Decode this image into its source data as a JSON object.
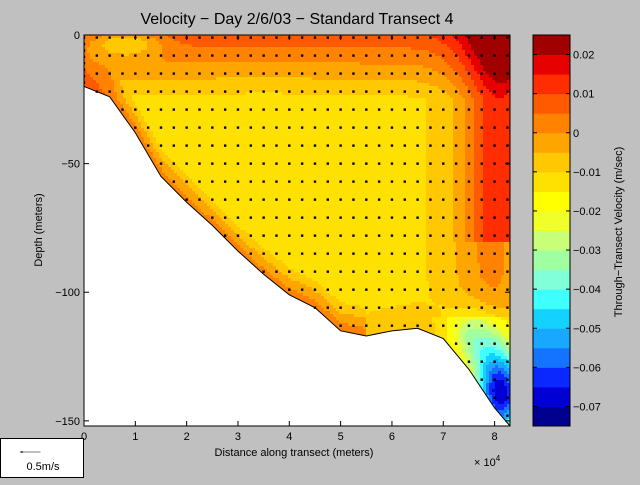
{
  "chart_data": {
    "type": "contour",
    "title": "Velocity − Day 2/6/03 − Standard Transect 4",
    "xlabel": "Distance along transect (meters)",
    "ylabel": "Depth (meters)",
    "x_exponent_label": "× 10",
    "x_exponent": "4",
    "xlim": [
      0,
      83000
    ],
    "ylim": [
      -152,
      0
    ],
    "x_ticks": [
      0,
      10000,
      20000,
      30000,
      40000,
      50000,
      60000,
      70000,
      80000
    ],
    "x_tick_labels": [
      "0",
      "1",
      "2",
      "3",
      "4",
      "5",
      "6",
      "7",
      "8"
    ],
    "y_ticks": [
      0,
      -50,
      -100,
      -150
    ],
    "y_tick_labels": [
      "0",
      "−50",
      "−100",
      "−150"
    ],
    "bottom_profile": {
      "x": [
        0,
        5000,
        10000,
        15000,
        20000,
        25000,
        30000,
        35000,
        40000,
        45000,
        50000,
        55000,
        60000,
        65000,
        70000,
        75000,
        80000,
        83000
      ],
      "depth": [
        -20,
        -24,
        -38,
        -55,
        -65,
        -74,
        -84,
        -93,
        -101,
        -106,
        -115,
        -117,
        -115,
        -114,
        -118,
        -130,
        -145,
        -152
      ]
    },
    "colorbar": {
      "label": "Through−Transect Velocity (m/sec)",
      "range": [
        -0.075,
        0.025
      ],
      "levels": 20,
      "ticks": [
        0.02,
        0.01,
        0,
        -0.01,
        -0.02,
        -0.03,
        -0.04,
        -0.05,
        -0.06,
        -0.07
      ],
      "tick_labels": [
        "0.02",
        "0.01",
        "0",
        "−0.01",
        "−0.02",
        "−0.03",
        "−0.04",
        "−0.05",
        "−0.06",
        "−0.07"
      ]
    },
    "colormap": [
      "#00008f",
      "#0000d4",
      "#0a28ff",
      "#1473ff",
      "#18a8ff",
      "#14d2ff",
      "#40ffff",
      "#80ffd8",
      "#a0ffa0",
      "#c8ff78",
      "#f0ff28",
      "#ffff00",
      "#ffe100",
      "#ffc800",
      "#ffa500",
      "#ff8200",
      "#ff5a00",
      "#ff2d00",
      "#e60000",
      "#a00000"
    ],
    "ensemble_step_m": 2500
  },
  "scale_arrow": {
    "label": "0.5m/s"
  }
}
